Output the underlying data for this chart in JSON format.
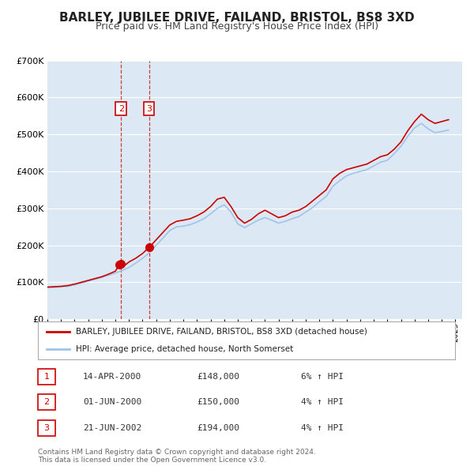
{
  "title": "BARLEY, JUBILEE DRIVE, FAILAND, BRISTOL, BS8 3XD",
  "subtitle": "Price paid vs. HM Land Registry's House Price Index (HPI)",
  "title_fontsize": 11,
  "subtitle_fontsize": 9,
  "background_color": "#ffffff",
  "plot_bg_color": "#dce9f5",
  "grid_color": "#ffffff",
  "red_line_color": "#cc0000",
  "blue_line_color": "#a0c4e8",
  "ylim": [
    0,
    700000
  ],
  "yticks": [
    0,
    100000,
    200000,
    300000,
    400000,
    500000,
    600000,
    700000
  ],
  "ytick_labels": [
    "£0",
    "£100K",
    "£200K",
    "£300K",
    "£400K",
    "£500K",
    "£600K",
    "£700K"
  ],
  "xmin": 1995.0,
  "xmax": 2025.5,
  "transactions": [
    {
      "label": "1",
      "date": "14-APR-2000",
      "year": 2000.29,
      "price": 148000,
      "hpi_pct": "6% ↑ HPI"
    },
    {
      "label": "2",
      "date": "01-JUN-2000",
      "year": 2000.42,
      "price": 150000,
      "hpi_pct": "4% ↑ HPI"
    },
    {
      "label": "3",
      "date": "21-JUN-2002",
      "year": 2002.47,
      "price": 194000,
      "hpi_pct": "4% ↑ HPI"
    }
  ],
  "vline_labels": [
    "2",
    "3"
  ],
  "chart_labels": {
    "2": [
      2000.42,
      570000
    ],
    "3": [
      2002.47,
      570000
    ]
  },
  "legend_property_label": "BARLEY, JUBILEE DRIVE, FAILAND, BRISTOL, BS8 3XD (detached house)",
  "legend_hpi_label": "HPI: Average price, detached house, North Somerset",
  "footer_line1": "Contains HM Land Registry data © Crown copyright and database right 2024.",
  "footer_line2": "This data is licensed under the Open Government Licence v3.0.",
  "red_hpi_data": [
    [
      1995.0,
      87000
    ],
    [
      1995.5,
      88000
    ],
    [
      1996.0,
      89000
    ],
    [
      1996.5,
      91000
    ],
    [
      1997.0,
      95000
    ],
    [
      1997.5,
      100000
    ],
    [
      1998.0,
      105000
    ],
    [
      1998.5,
      110000
    ],
    [
      1999.0,
      115000
    ],
    [
      1999.5,
      122000
    ],
    [
      2000.0,
      130000
    ],
    [
      2000.29,
      148000
    ],
    [
      2000.42,
      150000
    ],
    [
      2000.5,
      140000
    ],
    [
      2001.0,
      155000
    ],
    [
      2001.5,
      165000
    ],
    [
      2002.0,
      178000
    ],
    [
      2002.47,
      194000
    ],
    [
      2002.5,
      195000
    ],
    [
      2003.0,
      215000
    ],
    [
      2003.5,
      235000
    ],
    [
      2004.0,
      255000
    ],
    [
      2004.5,
      265000
    ],
    [
      2005.0,
      268000
    ],
    [
      2005.5,
      272000
    ],
    [
      2006.0,
      280000
    ],
    [
      2006.5,
      290000
    ],
    [
      2007.0,
      305000
    ],
    [
      2007.5,
      325000
    ],
    [
      2008.0,
      330000
    ],
    [
      2008.5,
      305000
    ],
    [
      2009.0,
      275000
    ],
    [
      2009.5,
      260000
    ],
    [
      2010.0,
      270000
    ],
    [
      2010.5,
      285000
    ],
    [
      2011.0,
      295000
    ],
    [
      2011.5,
      285000
    ],
    [
      2012.0,
      275000
    ],
    [
      2012.5,
      280000
    ],
    [
      2013.0,
      290000
    ],
    [
      2013.5,
      295000
    ],
    [
      2014.0,
      305000
    ],
    [
      2014.5,
      320000
    ],
    [
      2015.0,
      335000
    ],
    [
      2015.5,
      350000
    ],
    [
      2016.0,
      380000
    ],
    [
      2016.5,
      395000
    ],
    [
      2017.0,
      405000
    ],
    [
      2017.5,
      410000
    ],
    [
      2018.0,
      415000
    ],
    [
      2018.5,
      420000
    ],
    [
      2019.0,
      430000
    ],
    [
      2019.5,
      440000
    ],
    [
      2020.0,
      445000
    ],
    [
      2020.5,
      460000
    ],
    [
      2021.0,
      480000
    ],
    [
      2021.5,
      510000
    ],
    [
      2022.0,
      535000
    ],
    [
      2022.5,
      555000
    ],
    [
      2023.0,
      540000
    ],
    [
      2023.5,
      530000
    ],
    [
      2024.0,
      535000
    ],
    [
      2024.5,
      540000
    ]
  ],
  "blue_hpi_data": [
    [
      1995.0,
      85000
    ],
    [
      1995.5,
      86000
    ],
    [
      1996.0,
      87500
    ],
    [
      1996.5,
      89000
    ],
    [
      1997.0,
      93000
    ],
    [
      1997.5,
      98000
    ],
    [
      1998.0,
      103000
    ],
    [
      1998.5,
      108000
    ],
    [
      1999.0,
      113000
    ],
    [
      1999.5,
      119000
    ],
    [
      2000.0,
      125000
    ],
    [
      2000.5,
      132000
    ],
    [
      2001.0,
      140000
    ],
    [
      2001.5,
      152000
    ],
    [
      2002.0,
      165000
    ],
    [
      2002.5,
      180000
    ],
    [
      2003.0,
      200000
    ],
    [
      2003.5,
      220000
    ],
    [
      2004.0,
      240000
    ],
    [
      2004.5,
      250000
    ],
    [
      2005.0,
      252000
    ],
    [
      2005.5,
      256000
    ],
    [
      2006.0,
      263000
    ],
    [
      2006.5,
      272000
    ],
    [
      2007.0,
      285000
    ],
    [
      2007.5,
      300000
    ],
    [
      2008.0,
      310000
    ],
    [
      2008.5,
      290000
    ],
    [
      2009.0,
      258000
    ],
    [
      2009.5,
      248000
    ],
    [
      2010.0,
      258000
    ],
    [
      2010.5,
      268000
    ],
    [
      2011.0,
      275000
    ],
    [
      2011.5,
      268000
    ],
    [
      2012.0,
      260000
    ],
    [
      2012.5,
      265000
    ],
    [
      2013.0,
      272000
    ],
    [
      2013.5,
      278000
    ],
    [
      2014.0,
      290000
    ],
    [
      2014.5,
      302000
    ],
    [
      2015.0,
      318000
    ],
    [
      2015.5,
      332000
    ],
    [
      2016.0,
      360000
    ],
    [
      2016.5,
      375000
    ],
    [
      2017.0,
      388000
    ],
    [
      2017.5,
      395000
    ],
    [
      2018.0,
      400000
    ],
    [
      2018.5,
      405000
    ],
    [
      2019.0,
      415000
    ],
    [
      2019.5,
      425000
    ],
    [
      2020.0,
      430000
    ],
    [
      2020.5,
      448000
    ],
    [
      2021.0,
      468000
    ],
    [
      2021.5,
      495000
    ],
    [
      2022.0,
      518000
    ],
    [
      2022.5,
      530000
    ],
    [
      2023.0,
      515000
    ],
    [
      2023.5,
      505000
    ],
    [
      2024.0,
      508000
    ],
    [
      2024.5,
      512000
    ]
  ]
}
